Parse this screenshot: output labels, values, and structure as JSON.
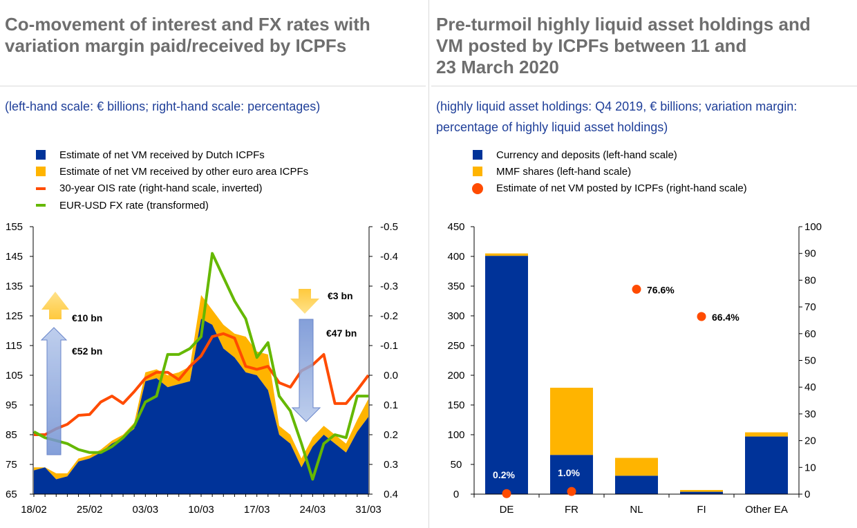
{
  "left": {
    "title_line1": "Co-movement of interest and FX rates with",
    "title_line2": "variation margin paid/received by ICPFs",
    "subtitle": "(left-hand scale: € billions; right-hand scale: percentages)",
    "legend": [
      {
        "label": "Estimate of net VM received by Dutch ICPFs",
        "color": "#003399",
        "kind": "box"
      },
      {
        "label": "Estimate of net VM received by other euro area ICPFs",
        "color": "#ffb400",
        "kind": "box"
      },
      {
        "label": "30-year OIS rate (right-hand scale, inverted)",
        "color": "#ff4b00",
        "kind": "line"
      },
      {
        "label": "EUR-USD FX rate (transformed)",
        "color": "#65b800",
        "kind": "line"
      }
    ],
    "annotations": {
      "up_yellow": "€10  bn",
      "up_blue": "€52  bn",
      "down_yellow": "€3 bn",
      "down_blue": "€47  bn"
    }
  },
  "right": {
    "title_line1": "Pre-turmoil highly liquid asset holdings and",
    "title_line2": "VM posted by ICPFs between 11 and",
    "title_line3": "23 March 2020",
    "subtitle_line1": "(highly liquid asset holdings: Q4 2019, € billions; variation margin:",
    "subtitle_line2": "percentage of highly liquid asset holdings)",
    "legend": [
      {
        "label": "Currency and deposits (left-hand scale)",
        "color": "#003399",
        "kind": "box"
      },
      {
        "label": "MMF shares (left-hand scale)",
        "color": "#ffb400",
        "kind": "box"
      },
      {
        "label": "Estimate of net VM posted by ICPFs (right-hand scale)",
        "color": "#ff4b00",
        "kind": "dot"
      }
    ]
  },
  "chart_data": [
    {
      "type": "area",
      "x_ticks": [
        "18/02",
        "25/02",
        "03/03",
        "10/03",
        "17/03",
        "24/03",
        "31/03"
      ],
      "ylim": [
        65,
        155
      ],
      "y_ticks": [
        "65",
        "75",
        "85",
        "95",
        "105",
        "115",
        "125",
        "135",
        "145",
        "155"
      ],
      "y2lim": [
        0.4,
        -0.5
      ],
      "y2_inverted": true,
      "y2_ticks": [
        "-0.5",
        "-0.4",
        "-0.3",
        "-0.2",
        "-0.1",
        "0.0",
        "0.1",
        "0.2",
        "0.3",
        "0.4"
      ],
      "x_days": [
        "18/02",
        "19/02",
        "20/02",
        "21/02",
        "24/02",
        "25/02",
        "26/02",
        "27/02",
        "28/02",
        "02/03",
        "03/03",
        "04/03",
        "05/03",
        "06/03",
        "09/03",
        "10/03",
        "11/03",
        "12/03",
        "13/03",
        "16/03",
        "17/03",
        "18/03",
        "19/03",
        "20/03",
        "23/03",
        "24/03",
        "25/03",
        "26/03",
        "27/03",
        "30/03",
        "31/03"
      ],
      "series": [
        {
          "name": "Estimate of net VM received by Dutch ICPFs",
          "kind": "area",
          "values": [
            73,
            74,
            70,
            71,
            76,
            77,
            79,
            82,
            84,
            87,
            103,
            104,
            101,
            102,
            103,
            124,
            122,
            114,
            111,
            106,
            105,
            100,
            85,
            82,
            74,
            81,
            85,
            82,
            79,
            86,
            91
          ]
        },
        {
          "name": "Estimate of net VM received by other euro area ICPFs",
          "kind": "stacked-area",
          "values": [
            1,
            0,
            2,
            1,
            1,
            1,
            1,
            1,
            1,
            2,
            3,
            3,
            4,
            4,
            5,
            8,
            5,
            8,
            8,
            12,
            8,
            12,
            3,
            3,
            3,
            3,
            3,
            3,
            3,
            4,
            6
          ]
        },
        {
          "name": "30-year OIS rate (right-hand scale, inverted)",
          "kind": "line",
          "axis": "right",
          "values": [
            0.2,
            0.2,
            0.18,
            0.165,
            0.135,
            0.132,
            0.09,
            0.07,
            0.095,
            0.055,
            0.01,
            -0.01,
            -0.01,
            0.015,
            -0.03,
            -0.065,
            -0.13,
            -0.14,
            -0.125,
            -0.03,
            -0.02,
            -0.03,
            0.025,
            0.04,
            -0.015,
            -0.035,
            -0.07,
            0.095,
            0.095,
            0.05,
            0.0
          ]
        },
        {
          "name": "EUR-USD FX rate (transformed)",
          "kind": "line",
          "values": [
            86,
            84,
            83,
            82,
            80,
            79,
            79,
            81,
            84,
            88,
            96,
            98,
            112,
            112,
            114,
            118,
            146,
            138,
            130,
            124,
            111,
            116,
            98,
            93,
            82,
            70,
            82,
            85,
            84,
            98,
            98
          ]
        }
      ]
    },
    {
      "type": "bar",
      "categories": [
        "DE",
        "FR",
        "NL",
        "FI",
        "Other EA"
      ],
      "ylim": [
        0,
        450
      ],
      "y_ticks": [
        "0",
        "50",
        "100",
        "150",
        "200",
        "250",
        "300",
        "350",
        "400",
        "450"
      ],
      "y2lim": [
        0,
        100
      ],
      "y2_ticks": [
        "0",
        "10",
        "20",
        "30",
        "40",
        "50",
        "60",
        "70",
        "80",
        "90",
        "100"
      ],
      "series": [
        {
          "name": "Currency and deposits (left-hand scale)",
          "kind": "stacked-bar",
          "values": [
            401,
            66,
            31,
            4,
            97
          ]
        },
        {
          "name": "MMF shares (left-hand scale)",
          "kind": "stacked-bar",
          "values": [
            4,
            113,
            30,
            3,
            7
          ]
        },
        {
          "name": "Estimate of net VM posted by ICPFs (right-hand scale)",
          "kind": "dot",
          "values": [
            0.2,
            1.0,
            76.6,
            66.4,
            null
          ],
          "labels": [
            "0.2%",
            "1.0%",
            "76.6%",
            "66.4%",
            ""
          ]
        }
      ]
    }
  ]
}
